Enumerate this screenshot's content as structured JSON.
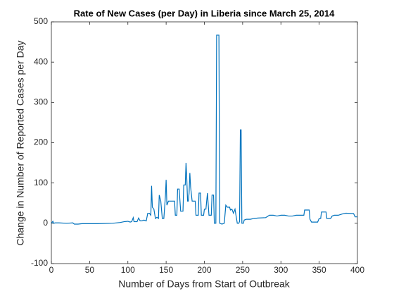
{
  "chart_data": {
    "type": "line",
    "title": "Rate of New Cases (per Day) in Liberia since March 25, 2014",
    "xlabel": "Number of Days from Start of Outbreak",
    "ylabel": "Change in Number of Reported Cases per Day",
    "x": [
      0,
      2,
      3,
      5,
      10,
      20,
      28,
      30,
      35,
      40,
      60,
      80,
      90,
      95,
      100,
      103,
      105,
      107,
      108,
      112,
      114,
      116,
      118,
      121,
      124,
      126,
      128,
      130,
      131,
      132,
      134,
      136,
      138,
      140,
      141,
      143,
      145,
      147,
      149,
      150,
      151,
      153,
      158,
      161,
      162,
      164,
      165,
      167,
      169,
      172,
      173,
      175,
      176,
      177,
      178,
      179,
      180,
      181,
      182,
      184,
      186,
      188,
      189,
      192,
      193,
      195,
      196,
      197,
      199,
      200,
      202,
      204,
      206,
      209,
      210,
      212,
      213,
      215,
      216,
      219,
      220,
      223,
      226,
      228,
      230,
      233,
      234,
      236,
      238,
      240,
      243,
      245,
      246,
      247,
      248,
      249,
      251,
      252,
      255,
      260,
      265,
      270,
      280,
      285,
      290,
      295,
      300,
      305,
      310,
      315,
      320,
      330,
      331,
      337,
      338,
      340,
      348,
      350,
      352,
      353,
      359,
      360,
      365,
      367,
      370,
      375,
      380,
      385,
      395,
      397,
      400
    ],
    "series": [
      {
        "name": "Liberia",
        "color": "#0072bd",
        "values": [
          0,
          5,
          0,
          1,
          1,
          0,
          1,
          -2,
          -2,
          -1,
          -1,
          0,
          2,
          4,
          5,
          3,
          4,
          14,
          4,
          4,
          13,
          6,
          6,
          8,
          6,
          25,
          25,
          20,
          93,
          40,
          35,
          12,
          15,
          12,
          70,
          55,
          12,
          12,
          65,
          108,
          45,
          55,
          55,
          55,
          20,
          20,
          85,
          85,
          30,
          30,
          95,
          95,
          150,
          110,
          55,
          55,
          75,
          125,
          90,
          55,
          55,
          55,
          20,
          20,
          75,
          75,
          20,
          20,
          20,
          35,
          35,
          75,
          20,
          20,
          70,
          70,
          0,
          0,
          467,
          467,
          0,
          -2,
          0,
          45,
          40,
          40,
          33,
          35,
          25,
          35,
          0,
          0,
          5,
          232,
          232,
          0,
          0,
          8,
          10,
          10,
          12,
          13,
          14,
          20,
          20,
          18,
          20,
          20,
          18,
          18,
          20,
          20,
          33,
          33,
          10,
          3,
          3,
          12,
          12,
          28,
          28,
          12,
          12,
          18,
          20,
          20,
          23,
          25,
          24,
          16,
          16
        ]
      }
    ],
    "xlim": [
      0,
      400
    ],
    "xticks": [
      0,
      50,
      100,
      150,
      200,
      250,
      300,
      350,
      400
    ],
    "ylim": [
      -100,
      500
    ],
    "yticks": [
      -100,
      0,
      100,
      200,
      300,
      400,
      500
    ]
  }
}
